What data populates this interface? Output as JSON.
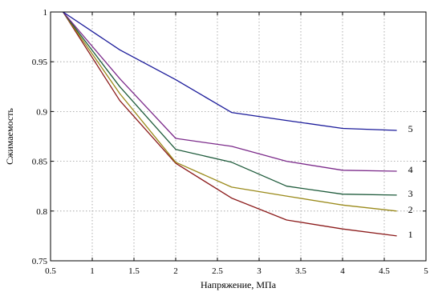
{
  "chart_data": {
    "type": "line",
    "title": "",
    "xlabel": "Напряжение, МПа",
    "ylabel": "Сжимаемость",
    "xlim": [
      0.5,
      5
    ],
    "ylim": [
      0.75,
      1
    ],
    "grid": true,
    "legend": "none",
    "x_ticks": [
      0.5,
      1,
      1.5,
      2,
      2.5,
      3,
      3.5,
      4,
      4.5,
      5
    ],
    "x_tick_labels": [
      "0.5",
      "1",
      "1.5",
      "2",
      "2.5",
      "3",
      "3.5",
      "4",
      "4.5",
      "5"
    ],
    "y_ticks": [
      0.75,
      0.8,
      0.85,
      0.9,
      0.95,
      1
    ],
    "y_tick_labels": [
      "0.75",
      "0.8",
      "0.85",
      "0.9",
      "0.95",
      "1"
    ],
    "series": [
      {
        "label": "1",
        "color": "#8b1a1a",
        "x": [
          0.65,
          1.33,
          2,
          2.67,
          3.33,
          4,
          4.65
        ],
        "y": [
          1,
          0.911,
          0.848,
          0.813,
          0.791,
          0.782,
          0.775
        ]
      },
      {
        "label": "2",
        "color": "#9a8a1a",
        "x": [
          0.65,
          1.33,
          2,
          2.67,
          3.33,
          4,
          4.65
        ],
        "y": [
          1,
          0.918,
          0.849,
          0.824,
          0.815,
          0.806,
          0.8
        ]
      },
      {
        "label": "3",
        "color": "#1d5a3a",
        "x": [
          0.65,
          1.33,
          2,
          2.67,
          3.33,
          4,
          4.65
        ],
        "y": [
          1,
          0.925,
          0.862,
          0.849,
          0.825,
          0.817,
          0.816
        ]
      },
      {
        "label": "4",
        "color": "#7b2a8a",
        "x": [
          0.65,
          1.33,
          2,
          2.67,
          3.33,
          4,
          4.65
        ],
        "y": [
          1,
          0.933,
          0.873,
          0.865,
          0.85,
          0.841,
          0.84
        ]
      },
      {
        "label": "5",
        "color": "#1a1a9a",
        "x": [
          0.65,
          1.33,
          2,
          2.67,
          3.33,
          4,
          4.65
        ],
        "y": [
          1,
          0.962,
          0.932,
          0.899,
          0.891,
          0.883,
          0.881
        ]
      }
    ]
  }
}
